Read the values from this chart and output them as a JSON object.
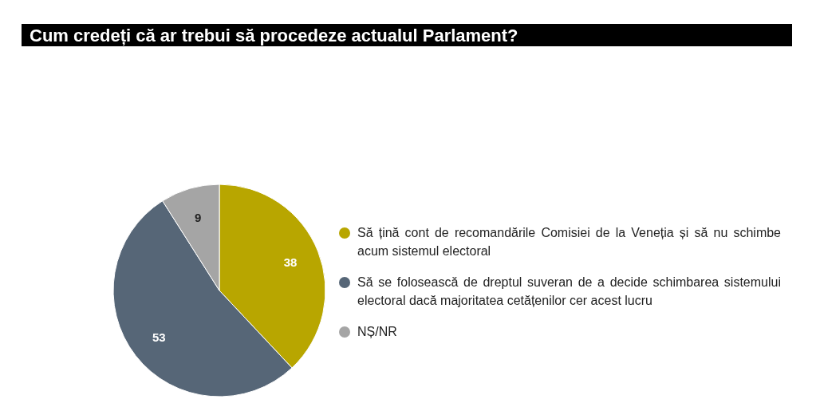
{
  "chart_data": {
    "type": "pie",
    "title": "Cum credeți că ar trebui să procedeze actualul Parlament?",
    "categories": [
      "Să țină cont de recomandările Comisiei de la Veneția și să nu schimbe acum sistemul electoral",
      "Să se folosească de dreptul suveran de a decide schimbarea sistemului electoral dacă majoritatea cetățenilor cer acest lucru",
      "NȘ/NR"
    ],
    "values": [
      38,
      53,
      9
    ],
    "colors": [
      "#b8a600",
      "#566677",
      "#a5a5a5"
    ],
    "data_labels": true,
    "legend": "right"
  }
}
